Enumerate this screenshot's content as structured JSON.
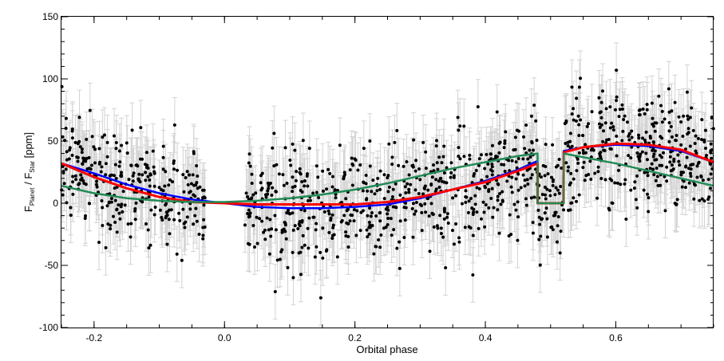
{
  "chart_data": {
    "type": "scatter",
    "title": "",
    "xlabel": "Orbital phase",
    "ylabel": {
      "main_f": "F",
      "sub_planet": "Planet",
      "slash": " / F",
      "sub_star": "Star",
      "unit": " [ppm]"
    },
    "xlim": [
      -0.25,
      0.75
    ],
    "ylim": [
      -100,
      150
    ],
    "x_ticks": [
      -0.2,
      0.0,
      0.2,
      0.4,
      0.6
    ],
    "x_tick_labels": [
      "-0.2",
      "0.0",
      "0.2",
      "0.4",
      "0.6"
    ],
    "y_ticks": [
      -100,
      -50,
      0,
      50,
      100,
      150
    ],
    "y_tick_labels": [
      "-100",
      "-50",
      "0",
      "50",
      "100",
      "150"
    ],
    "grid": false,
    "data_gaps": [
      [
        -0.03,
        0.03
      ]
    ],
    "scatter": {
      "points": 1330,
      "color": "#000000",
      "errorbar_color": "#d3d3d3",
      "binned_profile": [
        {
          "x": -0.25,
          "y": 34
        },
        {
          "x": -0.2,
          "y": 22
        },
        {
          "x": -0.15,
          "y": 13
        },
        {
          "x": -0.1,
          "y": 6
        },
        {
          "x": -0.05,
          "y": 2
        },
        {
          "x": 0.03,
          "y": -2
        },
        {
          "x": 0.1,
          "y": -2
        },
        {
          "x": 0.2,
          "y": -1
        },
        {
          "x": 0.3,
          "y": 6
        },
        {
          "x": 0.4,
          "y": 18
        },
        {
          "x": 0.47,
          "y": 32
        },
        {
          "x": 0.5,
          "y": 0
        },
        {
          "x": 0.52,
          "y": 40
        },
        {
          "x": 0.6,
          "y": 46
        },
        {
          "x": 0.7,
          "y": 38
        },
        {
          "x": 0.75,
          "y": 32
        }
      ],
      "scatter_sigma": 22,
      "errorbar_halfwidth": 22
    },
    "eclipse": {
      "start": 0.48,
      "end": 0.52,
      "depth": 0
    },
    "series": [
      {
        "color": "#0000ff",
        "x": [
          -0.25,
          -0.2,
          -0.15,
          -0.1,
          -0.05,
          0.0,
          0.05,
          0.1,
          0.15,
          0.2,
          0.25,
          0.3,
          0.35,
          0.4,
          0.45,
          0.48,
          0.52,
          0.55,
          0.6,
          0.65,
          0.7,
          0.75
        ],
        "y": [
          32,
          24,
          15,
          8,
          3,
          0,
          -3,
          -4,
          -4,
          -3,
          -1,
          4,
          11,
          18,
          27,
          34,
          42,
          45,
          47,
          46,
          42,
          33
        ]
      },
      {
        "color": "#ff0000",
        "x": [
          -0.25,
          -0.2,
          -0.15,
          -0.1,
          -0.05,
          0.0,
          0.05,
          0.1,
          0.15,
          0.2,
          0.25,
          0.3,
          0.35,
          0.4,
          0.45,
          0.48,
          0.52,
          0.55,
          0.6,
          0.65,
          0.7,
          0.75
        ],
        "y": [
          32,
          21,
          12,
          5,
          1,
          0,
          -1,
          -1,
          -1,
          -1,
          1,
          5,
          11,
          17,
          26,
          32,
          41,
          45,
          48,
          47,
          43,
          33
        ]
      },
      {
        "color": "#228b55",
        "x": [
          -0.25,
          -0.2,
          -0.15,
          -0.1,
          -0.05,
          0.0,
          0.05,
          0.1,
          0.15,
          0.2,
          0.25,
          0.3,
          0.35,
          0.4,
          0.45,
          0.48,
          0.52,
          0.55,
          0.6,
          0.65,
          0.7,
          0.75
        ],
        "y": [
          14,
          8,
          4,
          2,
          1,
          1,
          2,
          4,
          7,
          11,
          16,
          22,
          28,
          33,
          38,
          40,
          40,
          37,
          32,
          26,
          20,
          14
        ]
      }
    ]
  }
}
